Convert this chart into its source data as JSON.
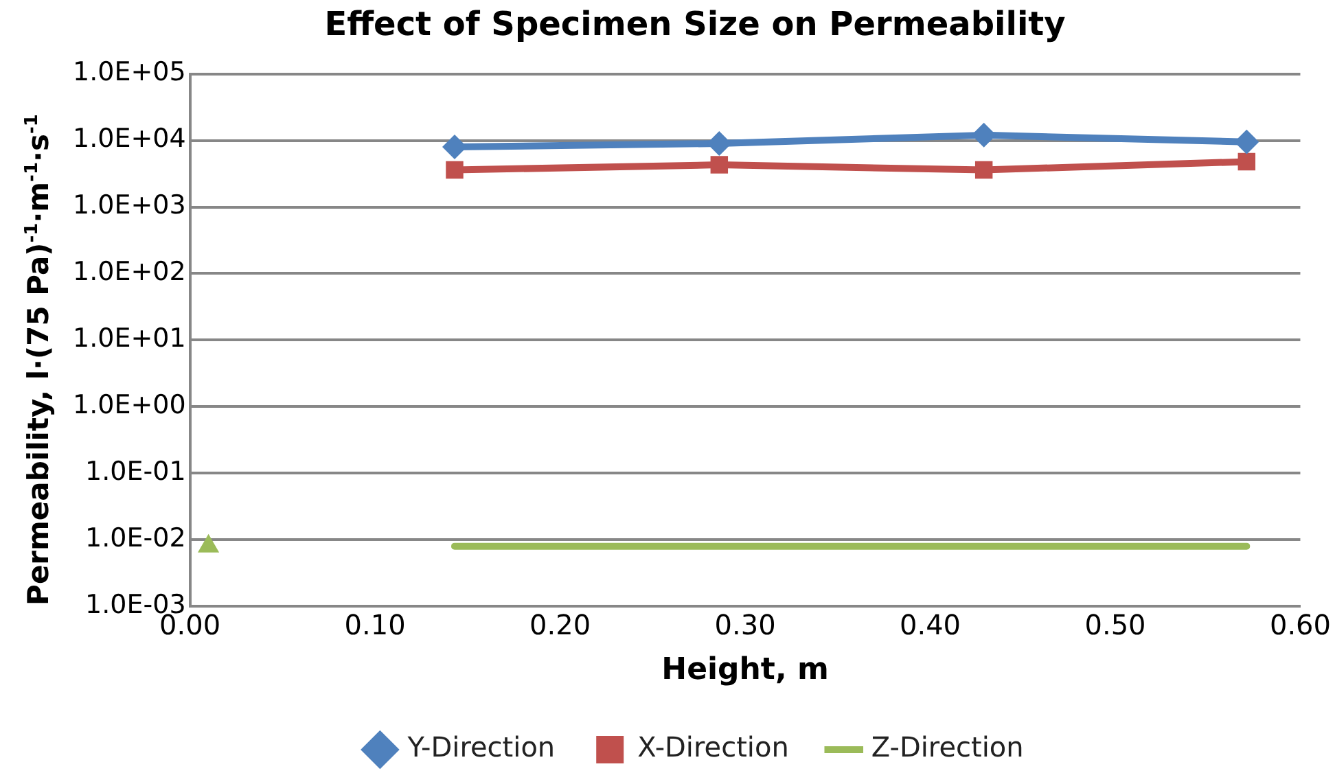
{
  "chart_data": {
    "type": "line",
    "title": "Effect of Specimen Size on Permeability",
    "xlabel": "Height, m",
    "ylabel": "Permeability, l·(75 Pa)$^{-1}$·m$^{-1}$·s$^{-1}$",
    "log": "y",
    "grid": "y",
    "legend": "bottom",
    "xlim": [
      0,
      0.6
    ],
    "xticks": [
      {
        "value": 0,
        "label": "0.00"
      },
      {
        "value": 0.1,
        "label": "0.10"
      },
      {
        "value": 0.2,
        "label": "0.20"
      },
      {
        "value": 0.3,
        "label": "0.30"
      },
      {
        "value": 0.4,
        "label": "0.40"
      },
      {
        "value": 0.5,
        "label": "0.50"
      },
      {
        "value": 0.6,
        "label": "0.60"
      }
    ],
    "ylim": [
      0.001,
      100000
    ],
    "yticks": [
      {
        "value": 0.001,
        "label": "1.0E-03"
      },
      {
        "value": 0.01,
        "label": "1.0E-02"
      },
      {
        "value": 0.1,
        "label": "1.0E-01"
      },
      {
        "value": 1,
        "label": "1.0E+00"
      },
      {
        "value": 10,
        "label": "1.0E+01"
      },
      {
        "value": 100,
        "label": "1.0E+02"
      },
      {
        "value": 1000,
        "label": "1.0E+03"
      },
      {
        "value": 10000,
        "label": "1.0E+04"
      },
      {
        "value": 100000,
        "label": "1.0E+05"
      }
    ],
    "series": [
      {
        "name": "Y-Direction",
        "color": "#4f81bd",
        "marker": "diamond",
        "x": [
          0.143,
          0.286,
          0.429,
          0.571
        ],
        "values": [
          8000,
          9000,
          12000,
          9500
        ]
      },
      {
        "name": "X-Direction",
        "color": "#c0504d",
        "marker": "square",
        "x": [
          0.143,
          0.286,
          0.429,
          0.571
        ],
        "values": [
          3600,
          4300,
          3600,
          4800
        ]
      },
      {
        "name": "Z-Direction",
        "color": "#9bbb59",
        "marker": "none",
        "x": [
          0.143,
          0.286,
          0.429,
          0.571
        ],
        "values": [
          0.008,
          0.008,
          0.008,
          0.008
        ]
      },
      {
        "type": "scatter",
        "color": "#9bbb59",
        "marker": "triangle",
        "x": [
          0.01
        ],
        "values": [
          0.008
        ]
      }
    ]
  }
}
